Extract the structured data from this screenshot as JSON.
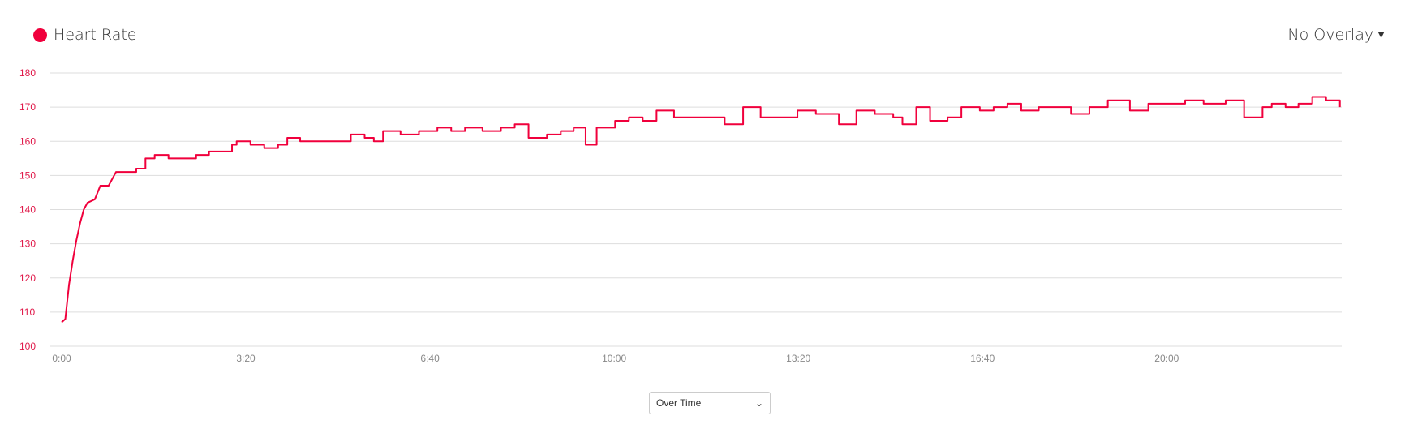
{
  "legend": {
    "label": "Heart Rate",
    "color": "#f0003c"
  },
  "overlay": {
    "label": "No Overlay",
    "icon": "caret-down-icon"
  },
  "view_select": {
    "value": "Over Time",
    "icon": "chevron-down-icon"
  },
  "chart_data": {
    "type": "line",
    "title": "",
    "xlabel": "",
    "ylabel": "",
    "ylim": [
      100,
      180
    ],
    "xlim": [
      0,
      1390
    ],
    "yticks": [
      "100",
      "110",
      "120",
      "130",
      "140",
      "150",
      "160",
      "170",
      "180"
    ],
    "xticks": [
      {
        "value": 0,
        "label": "0:00"
      },
      {
        "value": 200,
        "label": "3:20"
      },
      {
        "value": 400,
        "label": "6:40"
      },
      {
        "value": 600,
        "label": "10:00"
      },
      {
        "value": 800,
        "label": "13:20"
      },
      {
        "value": 1000,
        "label": "16:40"
      },
      {
        "value": 1200,
        "label": "20:00"
      }
    ],
    "grid": true,
    "series": [
      {
        "name": "Heart Rate",
        "color": "#f0003c",
        "x": [
          0,
          4,
          8,
          12,
          16,
          20,
          24,
          28,
          36,
          42,
          51,
          59,
          71,
          81,
          91,
          101,
          116,
          131,
          146,
          160,
          185,
          190,
          205,
          220,
          235,
          245,
          259,
          279,
          299,
          314,
          329,
          339,
          349,
          368,
          388,
          408,
          423,
          438,
          457,
          477,
          492,
          507,
          527,
          542,
          556,
          569,
          581,
          601,
          616,
          631,
          646,
          665,
          685,
          705,
          720,
          740,
          759,
          779,
          799,
          819,
          834,
          844,
          863,
          883,
          903,
          913,
          928,
          943,
          962,
          977,
          997,
          1012,
          1027,
          1042,
          1061,
          1081,
          1096,
          1116,
          1136,
          1160,
          1180,
          1200,
          1220,
          1240,
          1264,
          1284,
          1304,
          1314,
          1329,
          1343,
          1358,
          1373,
          1383,
          1388
        ],
        "y": [
          107,
          108,
          118,
          125,
          131,
          136,
          140,
          142,
          143,
          147,
          147,
          151,
          151,
          152,
          155,
          156,
          155,
          155,
          156,
          157,
          159,
          160,
          159,
          158,
          159,
          161,
          160,
          160,
          160,
          162,
          161,
          160,
          163,
          162,
          163,
          164,
          163,
          164,
          163,
          164,
          165,
          161,
          162,
          163,
          164,
          159,
          164,
          166,
          167,
          166,
          169,
          167,
          167,
          167,
          165,
          170,
          167,
          167,
          169,
          168,
          168,
          165,
          169,
          168,
          167,
          165,
          170,
          166,
          167,
          170,
          169,
          170,
          171,
          169,
          170,
          170,
          168,
          170,
          172,
          169,
          171,
          171,
          172,
          171,
          172,
          167,
          170,
          171,
          170,
          171,
          173,
          172,
          172,
          170
        ]
      }
    ]
  }
}
